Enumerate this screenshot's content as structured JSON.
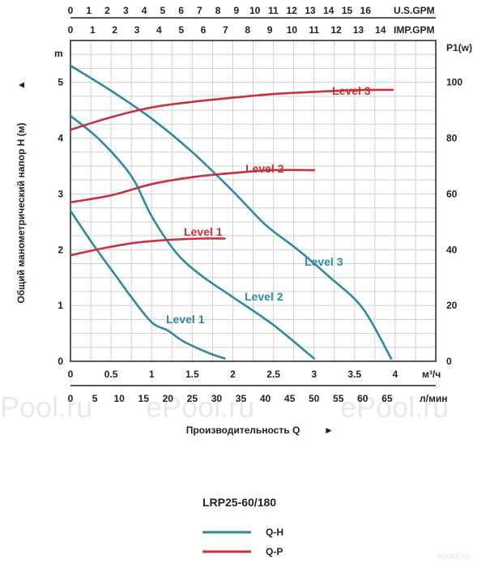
{
  "chart_data": {
    "type": "line",
    "model": "LRP25-60/180",
    "y_left": {
      "unit": "m",
      "ticks": [
        0,
        1,
        2,
        3,
        4,
        5
      ],
      "lim": [
        0,
        5.75
      ],
      "title": "Общий манометрический напор H (м)",
      "arrow": "▲"
    },
    "y_right": {
      "unit": "P1(w)",
      "ticks": [
        0,
        20,
        40,
        60,
        80,
        100
      ],
      "lim": [
        0,
        115
      ]
    },
    "x_m3h": {
      "unit": "м³/ч",
      "ticks": [
        0,
        0.5,
        1,
        1.5,
        2,
        2.5,
        3,
        3.5,
        4
      ],
      "lim": [
        0,
        4.5
      ]
    },
    "x_lmin": {
      "unit": "л/мин",
      "ticks": [
        0,
        5,
        10,
        15,
        20,
        25,
        30,
        35,
        40,
        45,
        50,
        55,
        60,
        65
      ]
    },
    "x_usgpm": {
      "unit": "U.S.GPM",
      "ticks": [
        0,
        1,
        2,
        3,
        4,
        5,
        6,
        7,
        8,
        9,
        10,
        11,
        12,
        13,
        14,
        15,
        16
      ]
    },
    "x_impgpm": {
      "unit": "IMP.GPM",
      "ticks": [
        0,
        1,
        2,
        3,
        4,
        5,
        6,
        7,
        8,
        9,
        10,
        11,
        12,
        13,
        14
      ]
    },
    "x_title": "Производительность Q",
    "x_arrow": "►",
    "series": [
      {
        "name": "Level 1",
        "kind": "Q-H",
        "color": "#2e8b9a",
        "x": [
          0,
          0.3,
          0.6,
          0.75,
          1,
          1.2,
          1.4,
          1.7,
          1.9
        ],
        "y": [
          2.7,
          2.05,
          1.45,
          1.15,
          0.7,
          0.55,
          0.35,
          0.15,
          0.05
        ]
      },
      {
        "name": "Level 2",
        "kind": "Q-H",
        "color": "#2e8b9a",
        "x": [
          0,
          0.3,
          0.6,
          0.8,
          1,
          1.3,
          1.6,
          2,
          2.5,
          3
        ],
        "y": [
          4.4,
          4.05,
          3.6,
          3.2,
          2.6,
          1.95,
          1.55,
          1.15,
          0.65,
          0.05
        ]
      },
      {
        "name": "Level 3",
        "kind": "Q-H",
        "color": "#2e8b9a",
        "x": [
          0,
          0.5,
          1,
          1.5,
          2,
          2.4,
          2.8,
          3.2,
          3.6,
          3.95
        ],
        "y": [
          5.3,
          4.85,
          4.35,
          3.75,
          3.05,
          2.45,
          2.0,
          1.5,
          0.95,
          0.05
        ]
      },
      {
        "name": "Level 1",
        "kind": "Q-P",
        "color": "#c8323a",
        "x": [
          0,
          0.4,
          0.8,
          1.2,
          1.6,
          1.9
        ],
        "p": [
          38,
          40.5,
          42.5,
          43.5,
          44,
          44
        ]
      },
      {
        "name": "Level 2",
        "kind": "Q-P",
        "color": "#c8323a",
        "x": [
          0,
          0.5,
          1,
          1.5,
          2,
          2.5,
          3
        ],
        "p": [
          57,
          59.5,
          63.5,
          66,
          67.5,
          68.5,
          68.5
        ]
      },
      {
        "name": "Level 3",
        "kind": "Q-P",
        "color": "#c8323a",
        "x": [
          0,
          0.5,
          1,
          1.5,
          2,
          2.5,
          3,
          3.5,
          3.97
        ],
        "p": [
          83,
          87.5,
          91,
          93,
          94.5,
          95.8,
          96.6,
          97.2,
          97.3
        ]
      }
    ],
    "legend": [
      {
        "label": "Q-H",
        "color": "#2e8b9a"
      },
      {
        "label": "Q-P",
        "color": "#c8323a"
      }
    ]
  },
  "watermarks": [
    "ePool.ru",
    "ePool.ru",
    "ePool.ru"
  ],
  "brand": "epool.ru"
}
